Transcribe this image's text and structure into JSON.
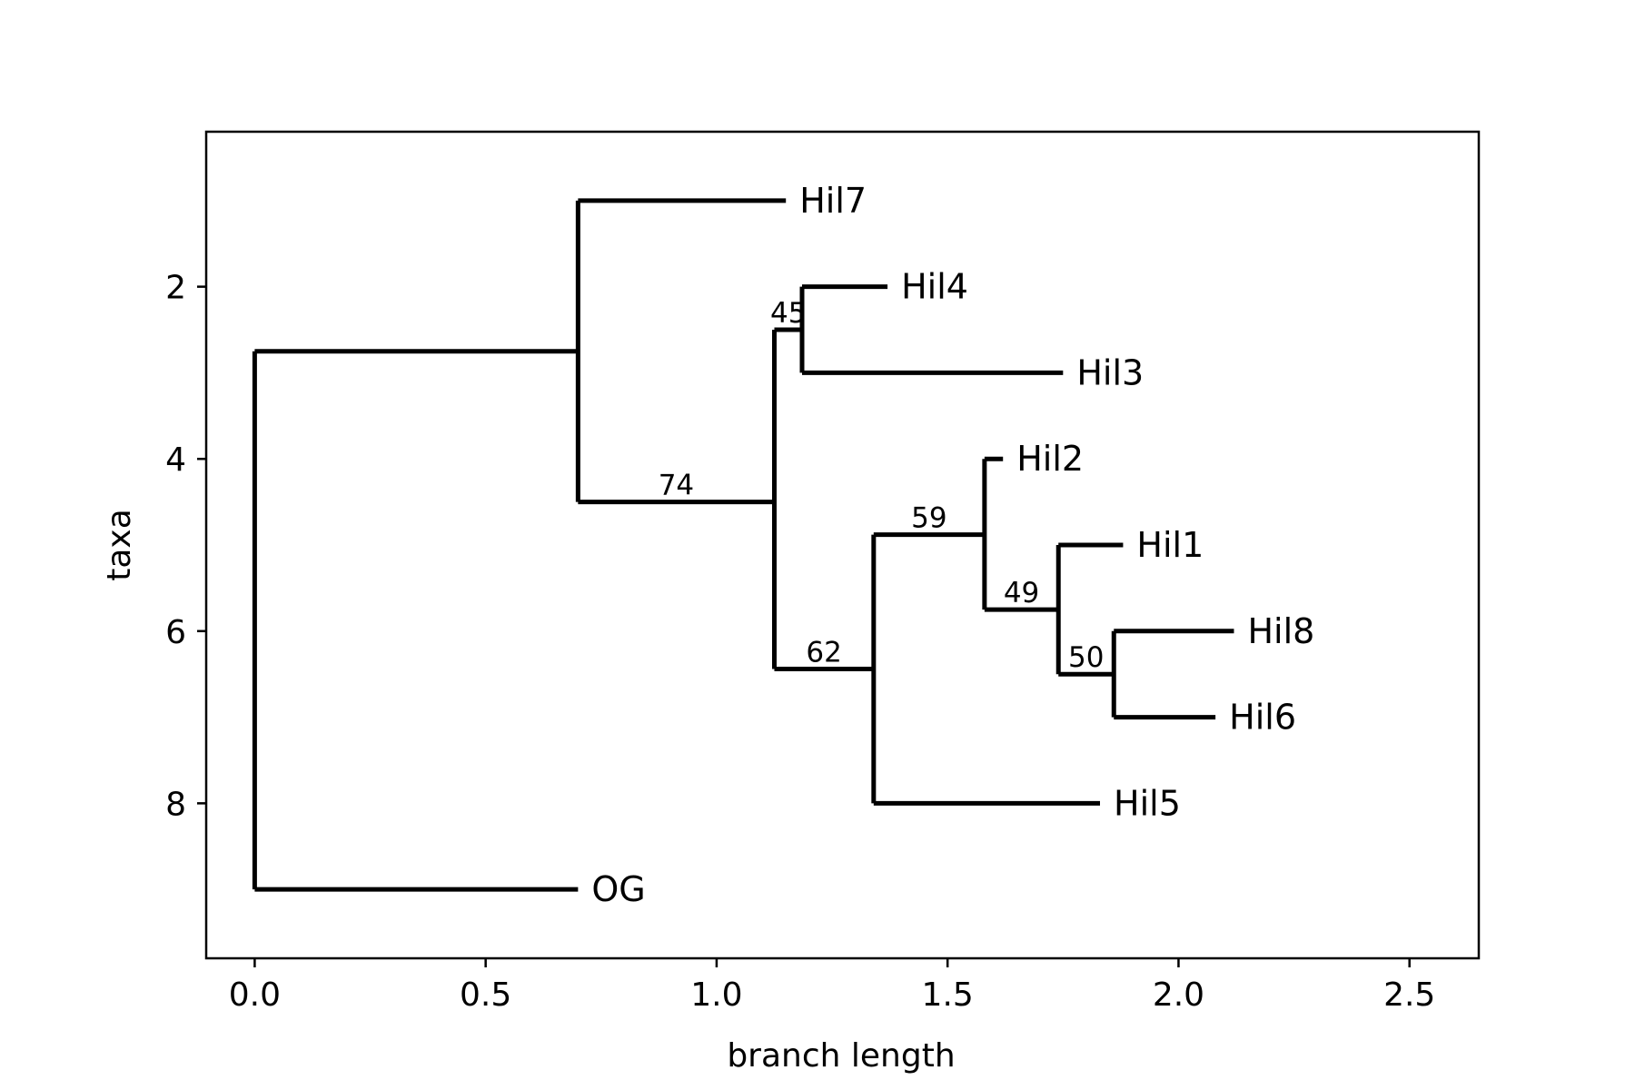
{
  "chart_data": {
    "type": "tree",
    "title": "",
    "xlabel": "branch length",
    "ylabel": "taxa",
    "xlim": [
      -0.105,
      2.65
    ],
    "ylim": [
      9.8,
      0.2
    ],
    "y_inverted": true,
    "grid": false,
    "x_ticks": [
      {
        "value": 0.0,
        "label": "0.0"
      },
      {
        "value": 0.5,
        "label": "0.5"
      },
      {
        "value": 1.0,
        "label": "1.0"
      },
      {
        "value": 1.5,
        "label": "1.5"
      },
      {
        "value": 2.0,
        "label": "2.0"
      },
      {
        "value": 2.5,
        "label": "2.5"
      }
    ],
    "y_ticks": [
      {
        "value": 2,
        "label": "2"
      },
      {
        "value": 4,
        "label": "4"
      },
      {
        "value": 6,
        "label": "6"
      },
      {
        "value": 8,
        "label": "8"
      }
    ],
    "leaves": [
      {
        "name": "Hil7",
        "x": 1.15,
        "y": 1
      },
      {
        "name": "Hil4",
        "x": 1.37,
        "y": 2
      },
      {
        "name": "Hil3",
        "x": 1.75,
        "y": 3
      },
      {
        "name": "Hil2",
        "x": 1.62,
        "y": 4
      },
      {
        "name": "Hil1",
        "x": 1.88,
        "y": 5
      },
      {
        "name": "Hil8",
        "x": 2.12,
        "y": 6
      },
      {
        "name": "Hil6",
        "x": 2.08,
        "y": 7
      },
      {
        "name": "Hil5",
        "x": 1.83,
        "y": 8
      },
      {
        "name": "OG",
        "x": 0.7,
        "y": 9
      }
    ],
    "internal_nodes": [
      {
        "id": "root",
        "x": 0.0,
        "y_low": 2.75,
        "y_high": 9,
        "parent_x": null,
        "parent_y": null,
        "support": null
      },
      {
        "id": "n1",
        "x": 0.7,
        "y_low": 1,
        "y_high": 4.5,
        "parent_x": 0.0,
        "parent_y": 2.75,
        "support": null
      },
      {
        "id": "n2",
        "x": 1.125,
        "y_low": 2.5,
        "y_high": 6.44,
        "parent_x": 0.7,
        "parent_y": 4.5,
        "support": "74"
      },
      {
        "id": "n3",
        "x": 1.185,
        "y_low": 2,
        "y_high": 3,
        "parent_x": 1.125,
        "parent_y": 2.5,
        "support": "45"
      },
      {
        "id": "n4",
        "x": 1.34,
        "y_low": 4.88,
        "y_high": 8,
        "parent_x": 1.125,
        "parent_y": 6.44,
        "support": "62"
      },
      {
        "id": "n5",
        "x": 1.58,
        "y_low": 4,
        "y_high": 5.75,
        "parent_x": 1.34,
        "parent_y": 4.88,
        "support": "59"
      },
      {
        "id": "n6",
        "x": 1.74,
        "y_low": 5,
        "y_high": 6.5,
        "parent_x": 1.58,
        "parent_y": 5.75,
        "support": "49"
      },
      {
        "id": "n7",
        "x": 1.86,
        "y_low": 6,
        "y_high": 7,
        "parent_x": 1.74,
        "parent_y": 6.5,
        "support": "50"
      }
    ],
    "leaf_parents": {
      "Hil7": "n1",
      "Hil4": "n3",
      "Hil3": "n3",
      "Hil2": "n5",
      "Hil1": "n6",
      "Hil8": "n7",
      "Hil6": "n7",
      "Hil5": "n4",
      "OG": "root"
    }
  }
}
